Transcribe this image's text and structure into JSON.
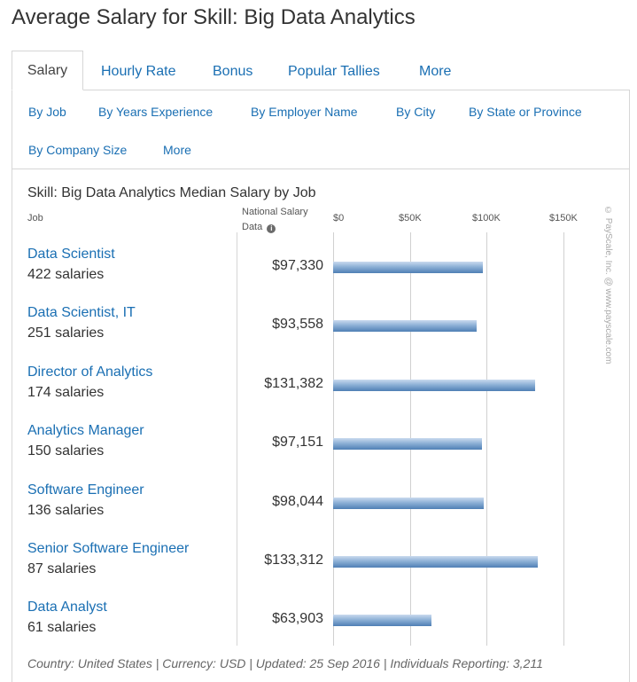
{
  "page": {
    "title": "Average Salary for Skill: Big Data Analytics"
  },
  "tabs": [
    {
      "label": "Salary",
      "active": true
    },
    {
      "label": "Hourly Rate"
    },
    {
      "label": "Bonus"
    },
    {
      "label": "Popular Tallies"
    },
    {
      "label": "More"
    }
  ],
  "subtabs": [
    "By Job",
    "By Years Experience",
    "By Employer Name",
    "By City",
    "By State or Province",
    "By Company Size",
    "More"
  ],
  "chart": {
    "title": "Skill: Big Data Analytics Median Salary by Job",
    "col_job": "Job",
    "col_national_1": "National Salary",
    "col_national_2": "Data",
    "info_icon": "i",
    "watermark": "© PayScale, Inc. @ www.payscale.com"
  },
  "chart_data": {
    "type": "bar",
    "orientation": "horizontal",
    "title": "Skill: Big Data Analytics Median Salary by Job",
    "xlim": [
      0,
      150000
    ],
    "tick_labels": [
      "$0",
      "$50K",
      "$100K",
      "$150K"
    ],
    "tick_values": [
      0,
      50000,
      100000,
      150000
    ],
    "grid": true,
    "categories": [
      "Data Scientist",
      "Data Scientist, IT",
      "Director of Analytics",
      "Analytics Manager",
      "Software Engineer",
      "Senior Software Engineer",
      "Data Analyst"
    ],
    "counts": [
      "422 salaries",
      "251 salaries",
      "174 salaries",
      "150 salaries",
      "136 salaries",
      "87 salaries",
      "61 salaries"
    ],
    "value_labels": [
      "$97,330",
      "$93,558",
      "$131,382",
      "$97,151",
      "$98,044",
      "$133,312",
      "$63,903"
    ],
    "values": [
      97330,
      93558,
      131382,
      97151,
      98044,
      133312,
      63903
    ],
    "colors": {
      "bar_top": "#c9daee",
      "bar_bottom": "#4f7fb5",
      "link": "#1a6fb3"
    }
  },
  "footer": "Country: United States | Currency: USD | Updated: 25 Sep 2016 | Individuals Reporting: 3,211"
}
